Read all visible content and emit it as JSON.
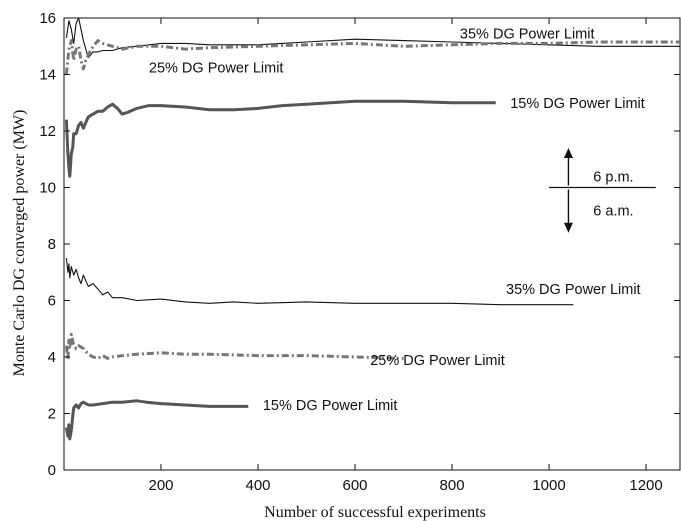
{
  "chart_data": {
    "type": "line",
    "xlabel": "Number of successful experiments",
    "ylabel": "Monte Carlo DG converged power (MW)",
    "xlim": [
      0,
      1270
    ],
    "ylim": [
      0,
      16
    ],
    "xticks": [
      200,
      400,
      600,
      800,
      1000,
      1200
    ],
    "yticks": [
      0,
      2,
      4,
      6,
      8,
      10,
      12,
      14,
      16
    ],
    "grid": false,
    "legend": "none",
    "series": [
      {
        "name": "35% DG Power Limit",
        "group": "6 p.m.",
        "color": "#111111",
        "style": "solid",
        "width": 1.1,
        "x": [
          5,
          10,
          15,
          20,
          25,
          30,
          35,
          40,
          45,
          50,
          55,
          60,
          70,
          80,
          100,
          120,
          150,
          200,
          250,
          300,
          400,
          500,
          600,
          700,
          800,
          900,
          1000,
          1100,
          1200,
          1270
        ],
        "y": [
          15.3,
          15.9,
          15.6,
          15.1,
          15.8,
          16.0,
          15.6,
          15.2,
          14.9,
          14.6,
          14.7,
          14.8,
          14.8,
          14.85,
          14.85,
          14.95,
          15.0,
          15.1,
          15.1,
          15.05,
          15.05,
          15.15,
          15.25,
          15.2,
          15.15,
          15.1,
          15.05,
          15.0,
          15.0,
          15.0
        ]
      },
      {
        "name": "25% DG Power Limit",
        "group": "6 p.m.",
        "color": "#777777",
        "style": "dashdot",
        "width": 3,
        "x": [
          5,
          10,
          15,
          20,
          25,
          30,
          35,
          40,
          45,
          50,
          60,
          70,
          80,
          100,
          120,
          150,
          200,
          250,
          300,
          400,
          500,
          600,
          700,
          800,
          900,
          1000,
          1100,
          1200,
          1270
        ],
        "y": [
          14.0,
          14.9,
          15.2,
          14.5,
          14.9,
          15.0,
          14.5,
          14.2,
          14.5,
          14.7,
          15.0,
          15.2,
          15.1,
          15.0,
          14.9,
          15.0,
          15.0,
          14.9,
          14.95,
          15.0,
          15.05,
          15.1,
          15.0,
          15.05,
          15.1,
          15.1,
          15.15,
          15.15,
          15.15
        ]
      },
      {
        "name": "15% DG Power Limit",
        "group": "6 p.m.",
        "color": "#555555",
        "style": "solid",
        "width": 3,
        "x": [
          5,
          8,
          10,
          12,
          15,
          18,
          20,
          25,
          30,
          35,
          40,
          45,
          50,
          60,
          70,
          80,
          90,
          100,
          110,
          120,
          130,
          150,
          175,
          200,
          250,
          300,
          350,
          400,
          450,
          500,
          600,
          700,
          800,
          890
        ],
        "y": [
          12.4,
          11.2,
          10.7,
          10.4,
          11.2,
          11.4,
          11.9,
          11.9,
          12.2,
          12.3,
          12.1,
          12.3,
          12.5,
          12.6,
          12.7,
          12.7,
          12.85,
          12.95,
          12.8,
          12.6,
          12.65,
          12.8,
          12.9,
          12.9,
          12.85,
          12.75,
          12.75,
          12.8,
          12.9,
          12.95,
          13.05,
          13.05,
          13.0,
          13.0
        ]
      },
      {
        "name": "35% DG Power Limit",
        "group": "6 a.m.",
        "color": "#111111",
        "style": "solid",
        "width": 1.1,
        "x": [
          5,
          8,
          10,
          12,
          15,
          20,
          25,
          30,
          35,
          40,
          45,
          50,
          60,
          70,
          80,
          90,
          100,
          120,
          150,
          200,
          250,
          300,
          350,
          400,
          500,
          600,
          700,
          800,
          900,
          1000,
          1050
        ],
        "y": [
          7.5,
          7.0,
          7.3,
          6.8,
          7.2,
          6.9,
          7.1,
          6.8,
          6.6,
          6.9,
          6.7,
          6.5,
          6.6,
          6.4,
          6.2,
          6.3,
          6.1,
          6.1,
          6.0,
          6.05,
          5.95,
          5.9,
          5.95,
          5.9,
          5.95,
          5.9,
          5.9,
          5.9,
          5.85,
          5.85,
          5.85
        ]
      },
      {
        "name": "25% DG Power Limit",
        "group": "6 a.m.",
        "color": "#777777",
        "style": "dashdot",
        "width": 3,
        "x": [
          5,
          8,
          10,
          12,
          15,
          20,
          25,
          30,
          40,
          50,
          60,
          70,
          80,
          90,
          100,
          120,
          150,
          200,
          250,
          300,
          400,
          500,
          600,
          700
        ],
        "y": [
          4.4,
          3.9,
          4.6,
          4.3,
          4.8,
          4.4,
          4.3,
          4.4,
          4.3,
          4.1,
          4.0,
          3.95,
          4.05,
          3.95,
          4.0,
          4.05,
          4.1,
          4.15,
          4.1,
          4.1,
          4.05,
          4.05,
          4.0,
          3.95
        ]
      },
      {
        "name": "15% DG Power Limit",
        "group": "6 a.m.",
        "color": "#555555",
        "style": "solid",
        "width": 3,
        "x": [
          5,
          8,
          10,
          12,
          15,
          18,
          20,
          25,
          30,
          35,
          40,
          50,
          60,
          80,
          100,
          120,
          150,
          170,
          200,
          250,
          300,
          350,
          380
        ],
        "y": [
          1.5,
          1.2,
          1.6,
          1.1,
          1.4,
          1.9,
          2.2,
          2.3,
          2.2,
          2.35,
          2.4,
          2.3,
          2.3,
          2.35,
          2.4,
          2.4,
          2.45,
          2.4,
          2.35,
          2.3,
          2.25,
          2.25,
          2.25
        ]
      }
    ],
    "annotations": {
      "labels": [
        {
          "text": "35% DG Power Limit",
          "x": 955,
          "y": 15.45,
          "anchor": "middle"
        },
        {
          "text": "25% DG Power Limit",
          "x": 175,
          "y": 14.25,
          "anchor": "start"
        },
        {
          "text": "15% DG Power Limit",
          "x": 920,
          "y": 13.0,
          "anchor": "start"
        },
        {
          "text": "35% DG Power Limit",
          "x": 1050,
          "y": 6.4,
          "anchor": "middle"
        },
        {
          "text": "25% DG Power Limit",
          "x": 770,
          "y": 3.9,
          "anchor": "middle"
        },
        {
          "text": "15% DG Power Limit",
          "x": 410,
          "y": 2.3,
          "anchor": "start"
        }
      ],
      "divider": {
        "upper_label": "6 p.m.",
        "lower_label": "6 a.m.",
        "y": 10.0,
        "x_start": 1000,
        "x_end": 1220,
        "arrow_x": 1040,
        "arrow_top": 11.4,
        "arrow_bottom": 8.4
      }
    }
  }
}
